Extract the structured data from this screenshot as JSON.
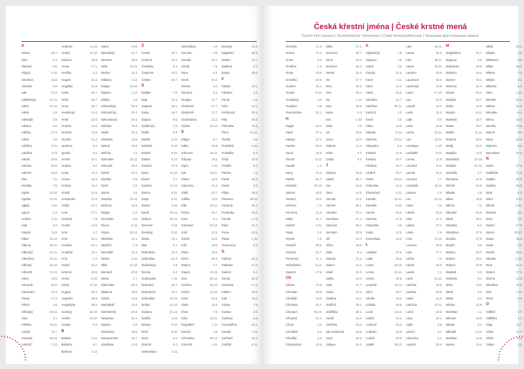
{
  "header": {
    "title": "Česká křestní jména | České krstné mená",
    "subtitle": "Czech first names | Tschechische Vornamen | Cseh keresztelőnevek | Чешские крестильные имена"
  },
  "colors": {
    "accent": "#c0185f"
  },
  "left_columns": [
    [
      "#A",
      "Abdon|30.7.",
      "Abel|2.1.",
      "Abelard|5.8.",
      "Abigail|5.10.",
      "Abrahám|16.8.",
      "Absolon|2.8.",
      "Ada|17.4.",
      "Adalbert(a)|21.11.",
      "Adam|24.12.",
      "Adéla|2.9.",
      "Adelaida|2.9.",
      "Adelina|2.9.",
      "Adél(a)|17.4.",
      "Adéle|2.9.",
      "Adolf(a)|17.6.",
      "Adolfina|17.6.",
      "Adrian|26.8.",
      "Adriána|26.8.",
      "Adrienn|26.8.",
      "Afra|7.8.",
      "Afrodita|7.8.",
      "Agáta|14.10.",
      "Agatha|14.10.",
      "Aglaja|14.5.",
      "Agnes|2.3.",
      "Achiles|2.11.",
      "Aida|2.2.",
      "Alan(a)|14.8.",
      "Alban|16.12.",
      "Albena|16.12.",
      "Albert(a)|21.11.",
      "Albertýna|21.11.",
      "Albín(a)|16.12.",
      "Albrecht|21.11.",
      "Alena|13.8.",
      "Alexandr|30.8.",
      "Alexandra|21.4.",
      "Alexej|17.3.",
      "Alfons|2.8.",
      "Alfréd(a)|28.11.",
      "Alice|9.1.",
      "Alžběta|19.11.",
      "Amálie|10.7.",
      "Amanda|29.12.",
      "Ambrož|7.12."
    ],
    [
      "Andreas|11.10.",
      "Andrej|11.10.",
      "Adriano|26.8.",
      "Aneta|17.1.",
      "Anežka|2.3.",
      "Angela|31.5.",
      "Angelika|31.5.",
      "Aniko|26.7.",
      "Anita|26.7.",
      "Anna|26.7.",
      "Anselm(a)|21.4.",
      "Antal|13.6.",
      "Antonie|13.6.",
      "Antonín|13.6.",
      "Anzelm|21.4.",
      "Apolena|9.2.",
      "Apolon|9.2.",
      "Arnošt|12.1.",
      "Aranka|8.2.",
      "Areta|11.4.",
      "Ariana|18.9.",
      "Ariel(a)|11.4.",
      "Aristid|21.8.",
      "Aristoteles|21.8.",
      "Arkád|12.1.",
      "Artur|17.7.",
      "Armand|7.6.",
      "Arnold|14.9.",
      "Aron|1.7.",
      "Arne|24.1.",
      "Arnolda|24.1.",
      "Arnulf(a)|24.1.",
      "Áron|2.4.",
      "Arpád|31.1.",
      "Artemis|22.5.",
      "Arvéd|5.10.",
      "Astrid|27.11.",
      "August|29.2.",
      "Augustin|28.8.",
      "Augustýna|28.8.",
      "Aurel(a)|15.10.",
      "Aurélie|15.10.",
      "Azalea|9.5.",
      "#B",
      "Babeta|4.12.",
      "Baltazar|6.1.",
      "Barbora|4.12."
    ],
    [
      "Barto|24.8.",
      "Bertold(a)|27.7.",
      "Bertram|30.5.",
      "Béla|19.11.",
      "Benko|21.3.",
      "Bibiana|2.12.",
      "Birgita|23.10.",
      "Blanka|1.12.",
      "Blažej|3.2.",
      "Bohumil(a)|30.4.",
      "Bohumír(a)|30.4.",
      "Bohuslav(a)|30.4.",
      "Bohdan|19.3.",
      "Bolek|30.4.",
      "Boleslav|13.6.",
      "Bohuš|15.6.",
      "Bořivoj|7.2.",
      "Bohuslav|28.11.",
      "Bohumil|30.4.",
      "Bořek|21.5.",
      "Bonifác|5.6.",
      "Boris|2.5.",
      "Borek|2.5.",
      "Borislav|22.11.",
      "Božena|13.2.",
      "Brigita|1.2.",
      "Bronislav|5.6.",
      "Bruno|6.10.",
      "Bryan|10.12.",
      "Břetislav|11.1.",
      "Bedřich|1.3.",
      "Benedikt|21.3.",
      "Beáta|8.11.",
      "Běla|12.10.",
      "Bernard|20.8.",
      "Berta|1.7.",
      "Blahoslav|20.4.",
      "Blažena|10.5.",
      "Bořek|12.5.",
      "Barnabáš|11.6.",
      "Bartoloměj|24.8.",
      "Benjamin|31.3.",
      "Bianka|5.9.",
      "Boleslava|19.6.",
      "Bonaventura|15.7.",
      "Bonifácie|14.5."
    ],
    [
      "#Č",
      "Čeněk|19.7.",
      "Čestmír|13.1.",
      "Čestislav|9.2.",
      "Čestmíra|13.1.",
      "Česlav|20.7.",
      "#D",
      "Dalibor|7.6.",
      "Dag|23.1.",
      "Dagmar|23.1.",
      "Daisy|16.7.",
      "Dajana|9.9.",
      "Dalibor(a)|7.6.",
      "Dalila|9.9.",
      "Dalimil|5.10.",
      "Dalimila|5.10.",
      "Dalimír|5.10.",
      "Dalma|5.12.",
      "Damián|27.9.",
      "Dana|11.10.",
      "Daniel|1.7.",
      "Daniela|11.12.",
      "Darina|9.11.",
      "Darja|9.11.",
      "Darius|3.10.",
      "David|30.12.",
      "Debora|30.12.",
      "Demeter|3.12.",
      "Denis(a)|9.10.",
      "Diana|13.1.",
      "Dita|6.2.",
      "Dobromila|12.3.",
      "Dobroslav|13.3.",
      "Dominik(a)|4.8.",
      "Dorota|6.2.",
      "Doubravka|7.12.",
      "Drahomír|18.7.",
      "Drahomíra|18.7.",
      "Drahoslav|22.10.",
      "Dušan|21.12.",
      "Dušana|21.12.",
      "Dalimil|4.10.",
      "Denisa|9.10.",
      "Diviš|9.10.",
      "Doris|6.2.",
      "Drahoš|8.2.",
      "Dobroslava|4.11."
    ],
    [
      "Dominik(a)|4.8.",
      "Domink|4.8.",
      "Donald|15.7.",
      "Donát|7.8.",
      "Dora|6.2.",
      "Doris|26.2.",
      "Dorota|6.2.",
      "Dorotea|6.2.",
      "Dragan|17.7.",
      "Drahomil|17.7.",
      "Drahomír|17.7.",
      "Drahoslava|3.12.",
      "Dušan|21.12.",
      "#E",
      "Edgar|8.7.",
      "Edita|16.9.",
      "Edmund|16.11.",
      "Eduard|18.3.",
      "Egon|1.11.",
      "Ela|19.11.",
      "Elena|18.8.",
      "Eleonora|21.2.",
      "Eliáš|20.7.",
      "Eliška|14.6.",
      "Ella|19.11.",
      "Elvíra|16.7.",
      "Ema|5.1.",
      "Emanuel|24.12.",
      "Emil|22.5.",
      "Emílie|24.8.",
      "Erik|18.5.",
      "Erika|18.5.",
      "Ervín|25.9.",
      "Estera|1.7.",
      "Eugen|13.11.",
      "Eva|24.12.",
      "Evelína|24.12.",
      "Evžen|13.11.",
      "Ester|24.5.",
      "Etela|15.9.",
      "Elvis|7.6.",
      "Elza|19.11.",
      "Engelbert|7.11.",
      "Erazim|2.6.",
      "Ernestina|28.12.",
      "Emerich|4.11."
    ],
    [
      "Dorotea|16.1.",
      "Dagobert|26.9.",
      "Dalton|14.7.",
      "Daphne|2.1.",
      "Darek|30.6.",
      "#F",
      "Fabián|20.1.",
      "Fabiána|4.3.",
      "Fanny|2.6.",
      "Felix|14.1.",
      "Ferdinand|30.5.",
      "Filip|26.5.",
      "Filoména|11.8.",
      "Flora|24.11.",
      "Florián|4.5.",
      "František|4.10.",
      "Františka|9.3.",
      "Frida|23.9.",
      "Fridolín|6.3.",
      "Felicita|7.3.",
      "Faust|15.2.",
      "Fedor|9.5.",
      "Filipa|26.5.",
      "Florence|28.10.",
      "Fortunát|23.4.",
      "Frederika|26.2.",
      "Fanuel|17.8.",
      "Fidel|24.4.",
      "Fiona|24.6.",
      "Flavie|1.10.",
      "Francesca|9.3.",
      "#G",
      "Gabriel|24.3.",
      "Gabriela|21.3.",
      "Gaston|6.2.",
      "Gerda|20.9.",
      "Gertruda|17.3.",
      "Gilbert|16.6.",
      "Gita|11.5.",
      "Gizela|7.5.",
      "Gustav|2.8.",
      "Gustava|2.8.",
      "Gvendolína|31.1.",
      "Gerald|7.12.",
      "Gerhard|24.4.",
      "Godfrid|8.11."
    ]
  ],
  "right_columns": [
    [
      "Graciéla|17.2.",
      "Grácie|17.2.",
      "Grant|6.9.",
      "Gradina|1.4.",
      "Greta|10.6.",
      "Griselda|24.9.",
      "Gudrun|15.1.",
      "Gunter|9.10.",
      "Gustav(a)|2.8.",
      "Gustýna|2.8.",
      "Gwendolína|31.1.",
      "#H",
      "Hagar|23.2.",
      "Haidi|27.1.",
      "Haldun|27.1.",
      "Hanika|25.2.",
      "Hana|15.8.",
      "Hanuš|8.10.",
      "Harald|1.4.",
      "Harry|24.2.",
      "Hašek|31.7.",
      "Hedvika|16.10.",
      "Helena|18.8.",
      "Herbert|16.3.",
      "Heřman|7.4.",
      "Hermína|11.6.",
      "Hilda|11.7.",
      "Hubert|3.11.",
      "Hugo|1.4.",
      "Hynek|7.5.",
      "Hostivít|29.5.",
      "Horymír|21.7.",
      "Hortenzie|11.1.",
      "Hvězdoslav|5.12.",
      "Hyacint|17.8.",
      "#CH",
      "Chiara|12.8.",
      "Christian|14.5.",
      "Christián|14.5.",
      "Christina|24.7.",
      "Chrysant|25.10.",
      "Chrudoš|21.2.",
      "Chval|4.3.",
      "Chvalimír|9.4.",
      "Chvalka|4.3.",
      "Chrysostom|13.9."
    ],
    [
      "Ildiko|27.1.",
      "Innocenc|28.7.",
      "Irena|16.4.",
      "Ireneusz|16.4.",
      "Irenka|16.4.",
      "Iris|17.7.",
      "Irma|10.9.",
      "Irvin|25.4.",
      "Iso|1.12.",
      "Ivan|25.6.",
      "Ivana|4.4.",
      "Ivar|1.10.",
      "Iveta|7.6.",
      "Ivo|19.5.",
      "Ivona|23.3.",
      "Izabela|11.4.",
      "Izidor|4.4.",
      "Izolda|4.4.",
      "#J",
      "Jáchym|16.8.",
      "Jakub|25.7.",
      "Jan|24.6.",
      "Jana|24.5.",
      "Jarmila|21.2.",
      "Jaromír|26.1.",
      "Jaroslav|27.4.",
      "Jaroslava|27.4.",
      "Jasmína|29.7.",
      "Jeroným|30.9.",
      "Jiří|24.4.",
      "Jiřina|18.6.",
      "Jitka|5.3.",
      "Johana|21.8.",
      "Jolana|13.4.",
      "Josef|19.3.",
      "Judita|13.4.",
      "Julie|21.7.",
      "Julius|12.4.",
      "Justýna|14.1.",
      "Jindřich|15.7.",
      "Jindřiška|28.1.",
      "Jonáš|21.9.",
      "Jozefína|19.3.",
      "Jan Nepomuk|16.5.",
      "Juraj|24.4.",
      "Juliana|16.2."
    ],
    [
      "#K",
      "Kajetán(a)|7.8.",
      "Kalypso|7.8.",
      "Kamil|3.8.",
      "Kamila|31.5.",
      "Karel|4.11.",
      "Karin|11.5.",
      "Karla|24.6.",
      "Karolína|14.7.",
      "Kateřina|25.11.",
      "Kazimír|4.3.",
      "Kevin|3.6.",
      "Klára|12.8.",
      "Klaudie|8.12.",
      "Klement|23.11.",
      "Kleopatra|8.3.",
      "Kristián|14.5.",
      "Kristina|24.7.",
      "Kristýna|24.7.",
      "Kryštof|25.7.",
      "Květa|10.12.",
      "Květoslav|12.2.",
      "Křesomysl|8.11.",
      "Konrád|26.11.",
      "Kornélie|8.10.",
      "Kornel|16.9.",
      "Kosmas|27.9.",
      "Krasoslav|4.6.",
      "Kvido|12.6.",
      "Kvetoslava|12.2.",
      "#L",
      "Ladislav|27.6.",
      "Lada|26.6.",
      "Laura|19.10.",
      "Lenka|22.11.",
      "Leona|12.8.",
      "Leopold|15.11.",
      "Libor|23.7.",
      "Libuše|10.3.",
      "Lidmila|16.9.",
      "Lucie|13.12.",
      "Luboš|16.6.",
      "Lubomír|22.2.",
      "Ludmila|16.9.",
      "Ludvík|25.8.",
      "Lukáš|18.10."
    ],
    [
      "Lars|26.11.",
      "Larisa|26.3.",
      "Lars|26.11.",
      "Laura|19.10.",
      "Laurenc|10.8.",
      "Laurencie|10.8.",
      "Laurentýn|10.8.",
      "Lazar|17.12.",
      "Lea|22.3.",
      "Leandr|13.3.",
      "Leda|22.3.",
      "Lejla|6.9.",
      "Lena|18.8.",
      "Lenka|22.11.",
      "Leo|10.11.",
      "Leodegar|2.10.",
      "Leokadie|9.12.",
      "Leona|12.8.",
      "Leonard|6.11.",
      "Leonid|15.4.",
      "Leonora|1.7.",
      "Leopolda|15.11.",
      "Lesana|1.3.",
      "Lev|10.11.",
      "Liana|4.6.",
      "Libuše|10.3.",
      "Lída|27.3.",
      "Liliana|27.7.",
      "Linda|1.9.",
      "Lívie|12.11.",
      "Lorenzo|10.8.",
      "Lota|17.7.",
      "Lothar|7.4.",
      "Luboš|16.6.",
      "Lucián|7.1.",
      "Lucie|13.12.",
      "Ludmila|16.9.",
      "Ludvika|25.8.",
      "Luisa|15.3.",
      "Lukrécie|23.11.",
      "Lumír|20.5.",
      "Luna|20.1.",
      "Lýdie|3.8.",
      "Lyonel|4.1.",
      "Lubomíra|3.4.",
      "Ludovít|25.8."
    ],
    [
      "#M",
      "Magdaléna|22.7.",
      "Magnus|6.9.",
      "Mahulena|28.5.",
      "Malvína|18.4.",
      "Marcel|16.1.",
      "Marcela|31.1.",
      "Marek|25.4.",
      "Margita|20.7.",
      "Marie|12.9.",
      "Marián|8.12.",
      "Markéta|13.7.",
      "Marta|29.7.",
      "Martin|11.11.",
      "Martina|30.1.",
      "Matěj|24.2.",
      "Matylda|14.3.",
      "Maxmilián|12.10.",
      "Melánie|31.12.",
      "Metoděj|5.7.",
      "Michaela|21.9.",
      "Michal|29.9.",
      "Milada|4.5.",
      "Milan|18.6.",
      "Milena|7.2.",
      "Miloslav|24.6.",
      "Miloš|25.1.",
      "Miroslav|6.3.",
      "Miroslava|27.6.",
      "Monika|27.8.",
      "Mojmír|9.6.",
      "Marina|20.7.",
      "Marius|19.1.",
      "Maurici|22.9.",
      "Medard|8.6.",
      "Melichar|6.1.",
      "Mína|3.10.",
      "Mirek|6.3.",
      "Mirka|6.3.",
      "Miriam|12.9.",
      "Mečislav|1.1.",
      "Milovan|18.5.",
      "Miluše|8.4.",
      "Mikuláš|6.12.",
      "Mstislav|14.6.",
      "Myrna|14.4."
    ],
    [
      "Mikal|25.1.",
      "Milada|4.5.",
      "Miloslava|5.5.",
      "Milan|18.6.",
      "Milena|7.2.",
      "Miluše|8.4.",
      "Milunka|8.4.",
      "Mina|3.10.",
      "Mirabel|10.6.",
      "Miriam|12.9.",
      "Miroslav|6.3.",
      "Mirna|14.4.",
      "Monika|27.8.",
      "Mojmír|9.6.",
      "Moric|22.9.",
      "Mojmíra|9.6.",
      "Myroslava|27.6.",
      "#N",
      "Naďa|17.9.",
      "Naděžda|17.9.",
      "Natálie|26.8.",
      "Nataša|26.8.",
      "Nela|5.2.",
      "Nikol|6.12.",
      "Nikola|6.12.",
      "Norbert|6.6.",
      "Nora|6.6.",
      "Naomi|17.9.",
      "Narcis|29.10.",
      "Natan|26.8.",
      "Neda|3.5.",
      "Nestor|26.2.",
      "Nikolas|6.12.",
      "Nina|14.1.",
      "Noemi|17.9.",
      "Norma|13.6.",
      "Nikodém|15.9.",
      "Noe|1.12.",
      "Nona|5.8.",
      "#O",
      "Oldřich|4.7.",
      "Oldřiška|4.7.",
      "Olga|11.7.",
      "Oliver|12.7.",
      "Olivie|5.3.",
      "Oskar|3.2."
    ]
  ]
}
